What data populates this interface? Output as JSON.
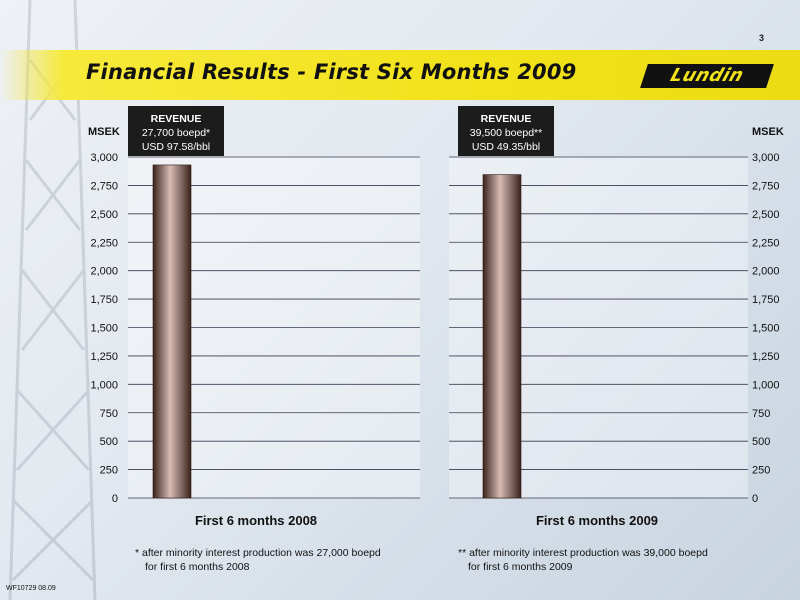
{
  "page_number": "3",
  "header": {
    "title": "Financial Results - First Six Months 2009",
    "logo_text": "Lundin"
  },
  "colors": {
    "title_bar": "#f2e21a",
    "bar_fill": "#3a231c",
    "bar_highlight": "#d8bcb4",
    "gridline": "#3a3a50"
  },
  "chart_data": [
    {
      "type": "bar",
      "categories": [
        "First 6 months 2008"
      ],
      "values": [
        2930
      ],
      "ylabel": "MSEK",
      "ylim": [
        0,
        3000
      ],
      "yticks": [
        0,
        250,
        500,
        750,
        1000,
        1250,
        1500,
        1750,
        2000,
        2250,
        2500,
        2750,
        3000
      ],
      "ytick_labels": [
        "0",
        "250",
        "500",
        "750",
        "1,000",
        "1,250",
        "1,500",
        "1,750",
        "2,000",
        "2,250",
        "2,500",
        "2,750",
        "3,000"
      ],
      "grid": true,
      "annotation": {
        "title": "REVENUE",
        "line1": "27,700 boepd*",
        "line2": "USD 97.58/bbl"
      },
      "footnote": {
        "line1": "* after minority interest production was 27,000 boepd",
        "line2": "for first 6 months 2008"
      }
    },
    {
      "type": "bar",
      "categories": [
        "First 6 months 2009"
      ],
      "values": [
        2845
      ],
      "ylabel": "MSEK",
      "ylim": [
        0,
        3000
      ],
      "yticks": [
        0,
        250,
        500,
        750,
        1000,
        1250,
        1500,
        1750,
        2000,
        2250,
        2500,
        2750,
        3000
      ],
      "ytick_labels": [
        "0",
        "250",
        "500",
        "750",
        "1,000",
        "1,250",
        "1,500",
        "1,750",
        "2,000",
        "2,250",
        "2,500",
        "2,750",
        "3,000"
      ],
      "grid": true,
      "annotation": {
        "title": "REVENUE",
        "line1": "39,500 boepd**",
        "line2": "USD 49.35/bbl"
      },
      "footnote": {
        "line1": "** after minority interest production was 39,000 boepd",
        "line2": "for first 6 months 2009"
      }
    }
  ],
  "document_code": "WF10729 08.09"
}
